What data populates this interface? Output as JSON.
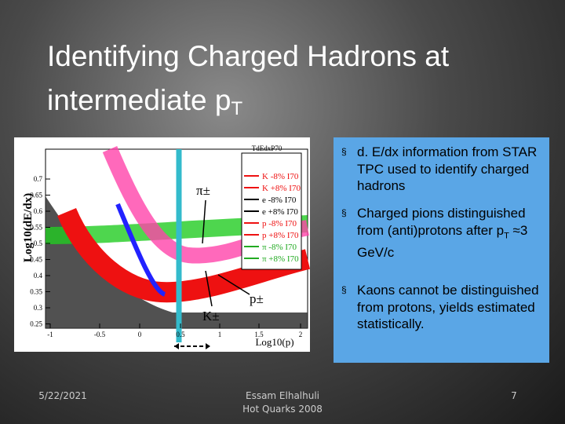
{
  "title": {
    "line1": "Identifying Charged Hadrons at",
    "line2": "intermediate p",
    "line2_sub": "T"
  },
  "figure": {
    "stats_title": "TdEdxP70",
    "y_label": "Log10(dE/dx)",
    "x_label": "Log10(p)",
    "y_ticks": [
      "0.7",
      "0.65",
      "0.6",
      "0.55",
      "0.5",
      "0.45",
      "0.4",
      "0.35",
      "0.3",
      "0.25"
    ],
    "x_ticks": [
      "-1",
      "-0.5",
      "0",
      "0.5",
      "1",
      "1.5",
      "2"
    ],
    "legend": [
      "K -8% I70",
      "K +8% I70",
      "e -8% I70",
      "e +8% I70",
      "p -8% I70",
      "p +8% I70",
      "π -8% I70",
      "π +8% I70"
    ],
    "annotations": [
      "π±",
      "K±",
      "p±"
    ]
  },
  "bullets": [
    {
      "marker": "§",
      "text": "d. E/dx information from STAR TPC used to identify charged hadrons"
    },
    {
      "marker": "§",
      "text": "Charged pions distinguished from (anti)protons after p",
      "sub": "T",
      "tail": " ≈3 GeV/c"
    },
    {
      "marker": "§",
      "text": "Kaons cannot be distinguished from protons, yields estimated statistically."
    }
  ],
  "footer": {
    "date": "5/22/2021",
    "author": "Essam Elhalhuli",
    "event": "Hot Quarks 2008",
    "page": "7"
  }
}
